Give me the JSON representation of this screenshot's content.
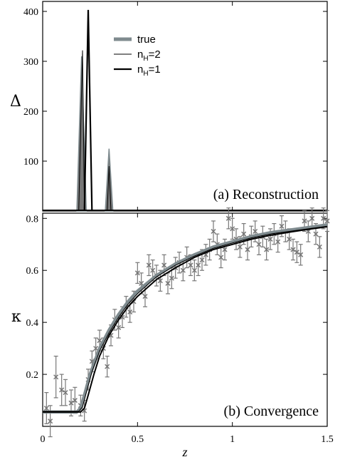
{
  "chart_data": [
    {
      "type": "area",
      "panel_label": "(a) Reconstruction",
      "ylabel": "Δ",
      "xlim": [
        0,
        1.5
      ],
      "ylim": [
        0,
        420
      ],
      "yticks": [
        100,
        200,
        300,
        400
      ],
      "legend_position": "top-center",
      "legend": {
        "true": "true",
        "nH2_base": "n",
        "nH2_sub": "H",
        "nH2_tail": "=2",
        "nH1_base": "n",
        "nH1_sub": "H",
        "nH1_tail": "=1"
      },
      "series": [
        {
          "name": "true",
          "x": [
            0.18,
            0.205,
            0.23,
            0.33,
            0.35,
            0.37
          ],
          "y": [
            0,
            310,
            0,
            0,
            125,
            0
          ]
        },
        {
          "name": "nH=2",
          "x": [
            0.19,
            0.21,
            0.22,
            0.34,
            0.35,
            0.36
          ],
          "y": [
            0,
            322,
            0,
            0,
            90,
            0
          ]
        },
        {
          "name": "nH=1",
          "x": [
            0.22,
            0.24,
            0.26
          ],
          "y": [
            0,
            403,
            0
          ]
        }
      ]
    },
    {
      "type": "line",
      "panel_label": "(b) Convergence",
      "ylabel": "κ",
      "xlabel": "z",
      "xlim": [
        0,
        1.5
      ],
      "ylim": [
        0,
        0.82
      ],
      "xticks": [
        0,
        0.5,
        1,
        1.5
      ],
      "xtick_labels": [
        "0",
        "0.5",
        "1",
        "1.5"
      ],
      "yticks": [
        0.2,
        0.4,
        0.6,
        0.8
      ],
      "ytick_labels": [
        "0.2",
        "0.4",
        "0.6",
        "0.8"
      ],
      "curves": [
        {
          "name": "true",
          "x": [
            0,
            0.18,
            0.2,
            0.22,
            0.25,
            0.3,
            0.35,
            0.4,
            0.45,
            0.5,
            0.6,
            0.7,
            0.8,
            0.9,
            1.0,
            1.1,
            1.2,
            1.3,
            1.4,
            1.5
          ],
          "y": [
            0.055,
            0.055,
            0.07,
            0.12,
            0.2,
            0.3,
            0.37,
            0.43,
            0.48,
            0.52,
            0.58,
            0.625,
            0.66,
            0.69,
            0.71,
            0.73,
            0.745,
            0.755,
            0.765,
            0.775
          ]
        },
        {
          "name": "nH=2",
          "x": [
            0,
            0.19,
            0.21,
            0.23,
            0.26,
            0.3,
            0.35,
            0.4,
            0.45,
            0.5,
            0.6,
            0.7,
            0.8,
            0.9,
            1.0,
            1.1,
            1.2,
            1.3,
            1.4,
            1.5
          ],
          "y": [
            0.058,
            0.058,
            0.075,
            0.13,
            0.21,
            0.29,
            0.36,
            0.42,
            0.47,
            0.51,
            0.575,
            0.62,
            0.655,
            0.685,
            0.705,
            0.725,
            0.74,
            0.75,
            0.76,
            0.77
          ]
        },
        {
          "name": "nH=1",
          "x": [
            0,
            0.2,
            0.22,
            0.24,
            0.27,
            0.3,
            0.35,
            0.4,
            0.45,
            0.5,
            0.6,
            0.7,
            0.8,
            0.9,
            1.0,
            1.1,
            1.2,
            1.3,
            1.4,
            1.5
          ],
          "y": [
            0.055,
            0.055,
            0.07,
            0.12,
            0.2,
            0.27,
            0.35,
            0.41,
            0.46,
            0.5,
            0.565,
            0.61,
            0.65,
            0.68,
            0.7,
            0.72,
            0.735,
            0.747,
            0.758,
            0.768
          ]
        }
      ],
      "data_points": [
        {
          "x": 0.02,
          "y": 0.07,
          "e": 0.06
        },
        {
          "x": 0.04,
          "y": 0.02,
          "e": 0.06
        },
        {
          "x": 0.07,
          "y": 0.19,
          "e": 0.08
        },
        {
          "x": 0.1,
          "y": 0.14,
          "e": 0.06
        },
        {
          "x": 0.12,
          "y": 0.13,
          "e": 0.05
        },
        {
          "x": 0.15,
          "y": 0.09,
          "e": 0.05
        },
        {
          "x": 0.17,
          "y": 0.1,
          "e": 0.05
        },
        {
          "x": 0.2,
          "y": 0.08,
          "e": 0.04
        },
        {
          "x": 0.22,
          "y": 0.06,
          "e": 0.04
        },
        {
          "x": 0.24,
          "y": 0.18,
          "e": 0.04
        },
        {
          "x": 0.26,
          "y": 0.25,
          "e": 0.04
        },
        {
          "x": 0.28,
          "y": 0.3,
          "e": 0.04
        },
        {
          "x": 0.3,
          "y": 0.33,
          "e": 0.04
        },
        {
          "x": 0.32,
          "y": 0.3,
          "e": 0.04
        },
        {
          "x": 0.34,
          "y": 0.23,
          "e": 0.04
        },
        {
          "x": 0.36,
          "y": 0.35,
          "e": 0.04
        },
        {
          "x": 0.38,
          "y": 0.41,
          "e": 0.04
        },
        {
          "x": 0.4,
          "y": 0.38,
          "e": 0.04
        },
        {
          "x": 0.42,
          "y": 0.42,
          "e": 0.04
        },
        {
          "x": 0.44,
          "y": 0.46,
          "e": 0.04
        },
        {
          "x": 0.46,
          "y": 0.44,
          "e": 0.04
        },
        {
          "x": 0.48,
          "y": 0.48,
          "e": 0.04
        },
        {
          "x": 0.5,
          "y": 0.59,
          "e": 0.04
        },
        {
          "x": 0.52,
          "y": 0.55,
          "e": 0.04
        },
        {
          "x": 0.54,
          "y": 0.5,
          "e": 0.04
        },
        {
          "x": 0.56,
          "y": 0.62,
          "e": 0.04
        },
        {
          "x": 0.58,
          "y": 0.6,
          "e": 0.04
        },
        {
          "x": 0.6,
          "y": 0.58,
          "e": 0.04
        },
        {
          "x": 0.62,
          "y": 0.56,
          "e": 0.04
        },
        {
          "x": 0.64,
          "y": 0.62,
          "e": 0.04
        },
        {
          "x": 0.66,
          "y": 0.55,
          "e": 0.04
        },
        {
          "x": 0.68,
          "y": 0.57,
          "e": 0.04
        },
        {
          "x": 0.7,
          "y": 0.61,
          "e": 0.04
        },
        {
          "x": 0.72,
          "y": 0.63,
          "e": 0.04
        },
        {
          "x": 0.74,
          "y": 0.6,
          "e": 0.04
        },
        {
          "x": 0.76,
          "y": 0.65,
          "e": 0.04
        },
        {
          "x": 0.78,
          "y": 0.62,
          "e": 0.04
        },
        {
          "x": 0.8,
          "y": 0.6,
          "e": 0.04
        },
        {
          "x": 0.82,
          "y": 0.62,
          "e": 0.04
        },
        {
          "x": 0.84,
          "y": 0.64,
          "e": 0.04
        },
        {
          "x": 0.86,
          "y": 0.66,
          "e": 0.04
        },
        {
          "x": 0.88,
          "y": 0.68,
          "e": 0.04
        },
        {
          "x": 0.9,
          "y": 0.75,
          "e": 0.04
        },
        {
          "x": 0.92,
          "y": 0.7,
          "e": 0.04
        },
        {
          "x": 0.94,
          "y": 0.65,
          "e": 0.04
        },
        {
          "x": 0.96,
          "y": 0.68,
          "e": 0.04
        },
        {
          "x": 0.98,
          "y": 0.8,
          "e": 0.04
        },
        {
          "x": 1.0,
          "y": 0.76,
          "e": 0.04
        },
        {
          "x": 1.02,
          "y": 0.72,
          "e": 0.04
        },
        {
          "x": 1.04,
          "y": 0.69,
          "e": 0.04
        },
        {
          "x": 1.06,
          "y": 0.74,
          "e": 0.04
        },
        {
          "x": 1.08,
          "y": 0.68,
          "e": 0.04
        },
        {
          "x": 1.1,
          "y": 0.73,
          "e": 0.04
        },
        {
          "x": 1.12,
          "y": 0.75,
          "e": 0.04
        },
        {
          "x": 1.14,
          "y": 0.7,
          "e": 0.04
        },
        {
          "x": 1.16,
          "y": 0.73,
          "e": 0.04
        },
        {
          "x": 1.18,
          "y": 0.68,
          "e": 0.04
        },
        {
          "x": 1.2,
          "y": 0.72,
          "e": 0.04
        },
        {
          "x": 1.22,
          "y": 0.74,
          "e": 0.04
        },
        {
          "x": 1.24,
          "y": 0.71,
          "e": 0.04
        },
        {
          "x": 1.26,
          "y": 0.77,
          "e": 0.04
        },
        {
          "x": 1.28,
          "y": 0.75,
          "e": 0.04
        },
        {
          "x": 1.3,
          "y": 0.72,
          "e": 0.04
        },
        {
          "x": 1.32,
          "y": 0.68,
          "e": 0.04
        },
        {
          "x": 1.34,
          "y": 0.67,
          "e": 0.04
        },
        {
          "x": 1.36,
          "y": 0.66,
          "e": 0.04
        },
        {
          "x": 1.38,
          "y": 0.79,
          "e": 0.04
        },
        {
          "x": 1.4,
          "y": 0.75,
          "e": 0.04
        },
        {
          "x": 1.42,
          "y": 0.8,
          "e": 0.04
        },
        {
          "x": 1.44,
          "y": 0.74,
          "e": 0.04
        },
        {
          "x": 1.46,
          "y": 0.69,
          "e": 0.04
        },
        {
          "x": 1.48,
          "y": 0.8,
          "e": 0.04
        },
        {
          "x": 1.5,
          "y": 0.79,
          "e": 0.04
        }
      ]
    }
  ],
  "colors": {
    "true_line": "#7f8b8f",
    "true_fill": "#777777",
    "nH2_line": "#000000",
    "nH1_line": "#000000",
    "points": "#777777"
  }
}
